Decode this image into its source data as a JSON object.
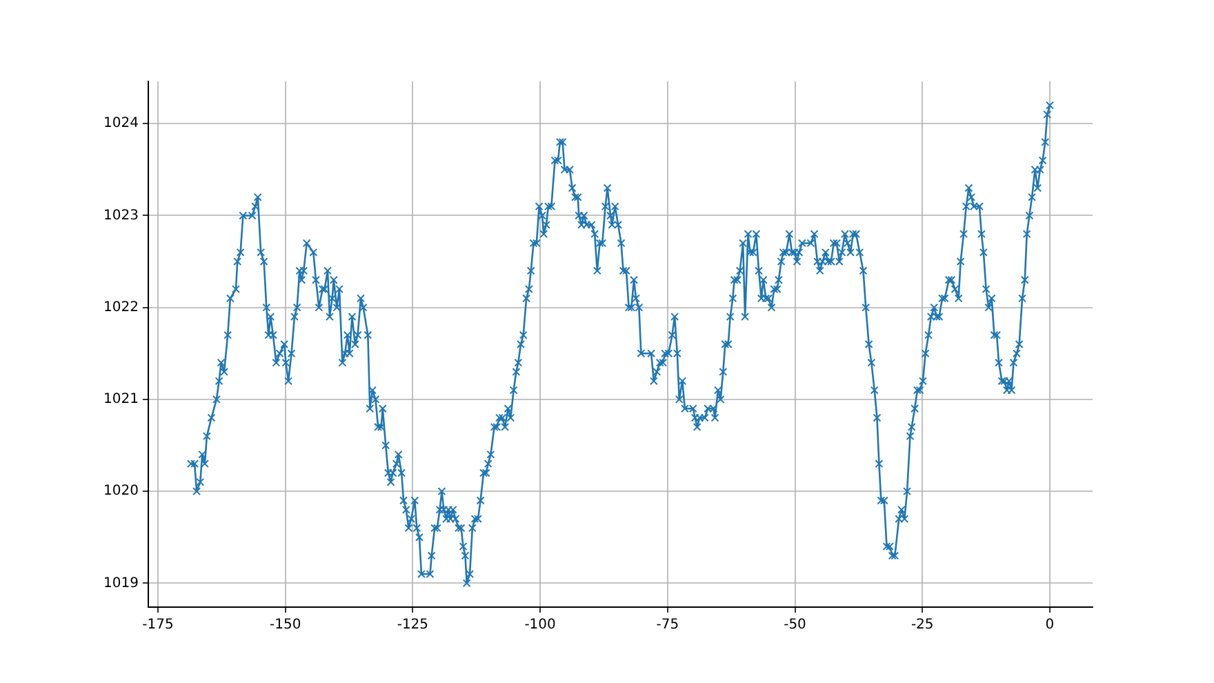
{
  "chart_data": {
    "type": "line",
    "marker": "cross",
    "grid": true,
    "legend": false,
    "xlim": [
      -176.9,
      8.4
    ],
    "ylim": [
      1018.74,
      1024.46
    ],
    "xticks": [
      -175,
      -150,
      -125,
      -100,
      -75,
      -50,
      -25,
      0
    ],
    "yticks": [
      1019,
      1020,
      1021,
      1022,
      1023,
      1024
    ],
    "x": [
      -168.5,
      -167.8,
      -167.4,
      -166.7,
      -166.3,
      -165.8,
      -165.4,
      -164.5,
      -163.5,
      -163.0,
      -162.6,
      -162.0,
      -161.3,
      -160.8,
      -159.7,
      -159.4,
      -158.8,
      -158.3,
      -156.5,
      -155.9,
      -155.4,
      -154.8,
      -154.2,
      -153.7,
      -153.3,
      -152.9,
      -152.4,
      -151.8,
      -151.1,
      -150.2,
      -149.9,
      -149.4,
      -148.8,
      -148.2,
      -147.7,
      -147.2,
      -146.8,
      -146.4,
      -145.8,
      -144.5,
      -144.0,
      -143.4,
      -142.7,
      -142.3,
      -141.7,
      -141.3,
      -140.8,
      -140.5,
      -139.9,
      -139.4,
      -138.8,
      -138.3,
      -137.8,
      -137.4,
      -136.9,
      -136.3,
      -135.8,
      -135.2,
      -134.7,
      -133.8,
      -133.4,
      -132.9,
      -132.3,
      -131.8,
      -131.2,
      -130.9,
      -130.3,
      -129.8,
      -129.3,
      -128.9,
      -128.2,
      -127.8,
      -127.2,
      -126.8,
      -126.3,
      -125.8,
      -125.3,
      -124.6,
      -124.2,
      -123.7,
      -123.3,
      -121.6,
      -121.3,
      -120.7,
      -120.2,
      -119.7,
      -119.3,
      -118.9,
      -118.4,
      -118.0,
      -117.6,
      -117.1,
      -116.6,
      -116.0,
      -115.5,
      -115.1,
      -114.7,
      -114.4,
      -113.8,
      -113.3,
      -112.8,
      -112.2,
      -111.7,
      -111.1,
      -110.6,
      -110.2,
      -109.7,
      -109.0,
      -108.5,
      -108.0,
      -107.4,
      -106.9,
      -106.3,
      -105.8,
      -105.2,
      -104.7,
      -104.3,
      -103.8,
      -103.3,
      -102.7,
      -102.2,
      -101.8,
      -101.3,
      -100.7,
      -100.2,
      -99.6,
      -99.3,
      -98.8,
      -98.4,
      -97.8,
      -97.1,
      -96.5,
      -96.1,
      -95.6,
      -95.2,
      -94.2,
      -93.7,
      -93.1,
      -92.6,
      -92.4,
      -91.9,
      -91.4,
      -90.9,
      -89.9,
      -89.3,
      -88.8,
      -88.3,
      -87.8,
      -87.2,
      -86.8,
      -86.2,
      -85.9,
      -85.3,
      -84.7,
      -84.1,
      -83.7,
      -83.1,
      -82.6,
      -82.1,
      -81.6,
      -81.2,
      -80.6,
      -80.2,
      -78.2,
      -77.7,
      -77.1,
      -76.5,
      -75.9,
      -75.5,
      -74.8,
      -74.1,
      -73.6,
      -73.1,
      -72.7,
      -72.1,
      -71.6,
      -70.0,
      -69.6,
      -69.2,
      -68.7,
      -67.7,
      -67.1,
      -66.0,
      -65.7,
      -65.1,
      -64.6,
      -64.1,
      -63.7,
      -63.1,
      -62.7,
      -62.2,
      -61.9,
      -61.3,
      -60.8,
      -60.2,
      -59.8,
      -59.2,
      -58.8,
      -58.2,
      -57.6,
      -57.1,
      -56.6,
      -56.2,
      -55.7,
      -55.2,
      -54.6,
      -54.1,
      -53.5,
      -53.2,
      -52.7,
      -52.3,
      -51.7,
      -51.1,
      -50.6,
      -50.1,
      -49.6,
      -49.2,
      -48.6,
      -46.9,
      -46.2,
      -45.6,
      -45.1,
      -44.6,
      -44.0,
      -43.5,
      -42.9,
      -42.4,
      -41.8,
      -41.3,
      -40.8,
      -40.2,
      -39.7,
      -39.1,
      -38.6,
      -38.0,
      -37.3,
      -36.6,
      -36.1,
      -35.5,
      -35.0,
      -34.4,
      -33.9,
      -33.5,
      -33.1,
      -32.5,
      -32.0,
      -31.4,
      -30.9,
      -30.4,
      -29.6,
      -29.1,
      -28.5,
      -28.0,
      -27.4,
      -27.1,
      -26.5,
      -26.0,
      -25.5,
      -24.9,
      -24.4,
      -23.8,
      -23.3,
      -22.7,
      -22.2,
      -21.7,
      -21.1,
      -20.6,
      -19.8,
      -19.3,
      -18.6,
      -17.9,
      -17.5,
      -16.9,
      -16.4,
      -15.9,
      -15.4,
      -14.9,
      -13.8,
      -13.4,
      -13.0,
      -12.5,
      -12.0,
      -11.4,
      -10.9,
      -10.4,
      -10.0,
      -9.4,
      -8.9,
      -8.4,
      -8.0,
      -7.5,
      -7.1,
      -6.5,
      -6.0,
      -5.4,
      -4.9,
      -4.5,
      -4.0,
      -3.5,
      -2.9,
      -2.4,
      -1.9,
      -1.4,
      -0.9,
      -0.5,
      0
    ],
    "series": [
      {
        "color": "#1f77b4",
        "values": [
          1020.3,
          1020.3,
          1020.0,
          1020.1,
          1020.4,
          1020.3,
          1020.6,
          1020.8,
          1021.0,
          1021.2,
          1021.4,
          1021.3,
          1021.7,
          1022.1,
          1022.2,
          1022.5,
          1022.6,
          1023.0,
          1023.0,
          1023.1,
          1023.2,
          1022.6,
          1022.5,
          1022.0,
          1021.7,
          1021.9,
          1021.7,
          1021.4,
          1021.5,
          1021.6,
          1021.4,
          1021.2,
          1021.5,
          1021.9,
          1022.0,
          1022.4,
          1022.3,
          1022.4,
          1022.7,
          1022.6,
          1022.3,
          1022.0,
          1022.2,
          1022.2,
          1022.4,
          1021.9,
          1022.1,
          1022.3,
          1022.0,
          1022.2,
          1021.4,
          1021.5,
          1021.7,
          1021.5,
          1021.9,
          1021.6,
          1021.7,
          1022.1,
          1022.0,
          1021.7,
          1020.9,
          1021.1,
          1021.0,
          1020.7,
          1020.7,
          1020.9,
          1020.5,
          1020.2,
          1020.1,
          1020.2,
          1020.3,
          1020.4,
          1020.2,
          1019.9,
          1019.8,
          1019.6,
          1019.7,
          1019.9,
          1019.6,
          1019.5,
          1019.1,
          1019.1,
          1019.3,
          1019.6,
          1019.6,
          1019.8,
          1020.0,
          1019.8,
          1019.7,
          1019.8,
          1019.7,
          1019.8,
          1019.7,
          1019.6,
          1019.6,
          1019.4,
          1019.3,
          1019.0,
          1019.1,
          1019.6,
          1019.7,
          1019.7,
          1019.9,
          1020.2,
          1020.2,
          1020.3,
          1020.4,
          1020.7,
          1020.7,
          1020.8,
          1020.8,
          1020.7,
          1020.9,
          1020.8,
          1021.1,
          1021.3,
          1021.4,
          1021.6,
          1021.7,
          1022.1,
          1022.2,
          1022.4,
          1022.7,
          1022.7,
          1023.1,
          1023.0,
          1022.8,
          1022.9,
          1023.1,
          1023.1,
          1023.6,
          1023.6,
          1023.8,
          1023.8,
          1023.5,
          1023.5,
          1023.3,
          1023.2,
          1023.2,
          1023.0,
          1022.9,
          1023.0,
          1022.9,
          1022.9,
          1022.8,
          1022.4,
          1022.7,
          1022.7,
          1023.1,
          1023.3,
          1023.0,
          1022.9,
          1023.1,
          1022.9,
          1022.7,
          1022.4,
          1022.4,
          1022.0,
          1022.0,
          1022.3,
          1022.1,
          1022.0,
          1021.5,
          1021.5,
          1021.2,
          1021.3,
          1021.4,
          1021.4,
          1021.5,
          1021.5,
          1021.7,
          1021.9,
          1021.5,
          1021.0,
          1021.2,
          1020.9,
          1020.9,
          1020.8,
          1020.7,
          1020.8,
          1020.8,
          1020.9,
          1020.9,
          1020.8,
          1021.1,
          1021.0,
          1021.3,
          1021.6,
          1021.6,
          1021.9,
          1022.1,
          1022.3,
          1022.3,
          1022.4,
          1022.7,
          1021.9,
          1022.8,
          1022.6,
          1022.6,
          1022.8,
          1022.4,
          1022.1,
          1022.3,
          1022.1,
          1022.1,
          1022.0,
          1022.2,
          1022.2,
          1022.3,
          1022.5,
          1022.6,
          1022.6,
          1022.8,
          1022.6,
          1022.6,
          1022.5,
          1022.6,
          1022.7,
          1022.7,
          1022.8,
          1022.5,
          1022.4,
          1022.5,
          1022.6,
          1022.5,
          1022.5,
          1022.7,
          1022.7,
          1022.5,
          1022.6,
          1022.8,
          1022.7,
          1022.6,
          1022.8,
          1022.8,
          1022.6,
          1022.4,
          1022.0,
          1021.6,
          1021.4,
          1021.1,
          1020.8,
          1020.3,
          1019.9,
          1019.9,
          1019.4,
          1019.4,
          1019.3,
          1019.3,
          1019.7,
          1019.8,
          1019.7,
          1020.0,
          1020.6,
          1020.7,
          1020.9,
          1021.1,
          1021.1,
          1021.2,
          1021.5,
          1021.7,
          1021.9,
          1022.0,
          1021.9,
          1021.9,
          1022.1,
          1022.1,
          1022.3,
          1022.3,
          1022.2,
          1022.1,
          1022.5,
          1022.8,
          1023.1,
          1023.3,
          1023.2,
          1023.1,
          1023.1,
          1022.8,
          1022.6,
          1022.2,
          1022.0,
          1022.1,
          1021.7,
          1021.7,
          1021.4,
          1021.2,
          1021.2,
          1021.1,
          1021.2,
          1021.1,
          1021.4,
          1021.5,
          1021.6,
          1022.1,
          1022.3,
          1022.8,
          1023.0,
          1023.2,
          1023.5,
          1023.3,
          1023.5,
          1023.6,
          1023.8,
          1024.1,
          1024.2
        ]
      }
    ]
  }
}
